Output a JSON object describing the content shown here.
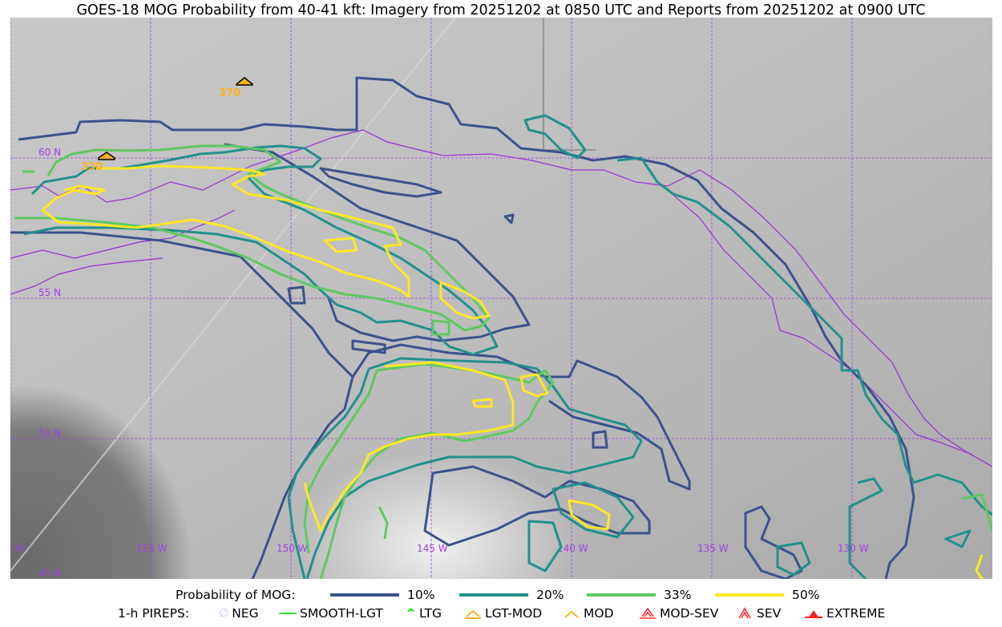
{
  "title": "GOES-18 MOG Probability from 40-41 kft: Imagery from 20251202 at 0850 UTC and Reports from 20251202 at 0900 UTC",
  "map": {
    "lat_labels": [
      "60 N",
      "55 N",
      "50 N",
      "45 N"
    ],
    "lon_labels": [
      "60 W",
      "155 W",
      "150 W",
      "145 W",
      "140 W",
      "135 W",
      "130 W"
    ],
    "grid_color": "#a040e0",
    "coast_color": "#9b30d0",
    "pireps": [
      {
        "altitude": "370",
        "type": "MOD"
      },
      {
        "altitude": "330",
        "type": "LGT-MOD"
      }
    ]
  },
  "legend": {
    "probability_label": "Probability of MOG:",
    "probability_items": [
      {
        "label": "10%",
        "color": "#3b528b"
      },
      {
        "label": "20%",
        "color": "#21918c"
      },
      {
        "label": "33%",
        "color": "#5ec962"
      },
      {
        "label": "50%",
        "color": "#fde725"
      }
    ],
    "pireps_label": "1-h PIREPS:",
    "pireps_items": [
      {
        "label": "NEG",
        "icon": "neg-icon",
        "color": "#c8c8ff"
      },
      {
        "label": "SMOOTH-LGT",
        "icon": "line-icon",
        "color": "#33ee33"
      },
      {
        "label": "LTG",
        "icon": "caret-icon",
        "color": "#00dd00"
      },
      {
        "label": "LGT-MOD",
        "icon": "caret-bar-icon",
        "color": "#ffb020"
      },
      {
        "label": "MOD",
        "icon": "caret-icon",
        "color": "#ffb020"
      },
      {
        "label": "MOD-SEV",
        "icon": "double-caret-bar-icon",
        "color": "#ff3030"
      },
      {
        "label": "SEV",
        "icon": "double-caret-icon",
        "color": "#ff3030"
      },
      {
        "label": "EXTREME",
        "icon": "filled-triangle-icon",
        "color": "#ff2020"
      }
    ]
  }
}
